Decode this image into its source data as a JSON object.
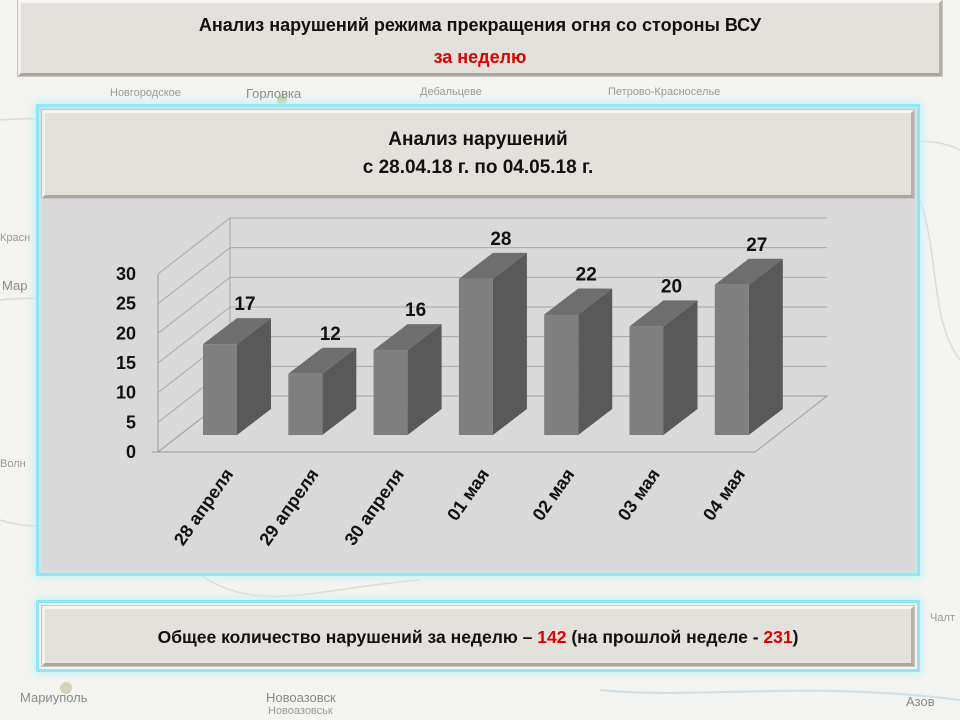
{
  "header": {
    "title": "Анализ нарушений режима прекращения огня со стороны ВСУ",
    "subtitle": "за неделю"
  },
  "chart": {
    "title_line1": "Анализ нарушений",
    "title_line2": "с 28.04.18 г. по 04.05.18 г."
  },
  "chart_data": {
    "type": "bar",
    "categories": [
      "28 апреля",
      "29 апреля",
      "30 апреля",
      "01 мая",
      "02 мая",
      "03 мая",
      "04 мая"
    ],
    "values": [
      17,
      12,
      16,
      28,
      22,
      20,
      27
    ],
    "ylim": [
      0,
      30
    ],
    "yticks": [
      0,
      5,
      10,
      15,
      20,
      25,
      30
    ],
    "grid": true,
    "legend": "none",
    "style": "3d-column"
  },
  "summary": {
    "prefix": "Общее количество нарушений за неделю – ",
    "week_total": "142",
    "middle": " (на прошлой неделе - ",
    "prev_total": "231",
    "suffix": ")"
  },
  "map_labels": [
    "Горловка",
    "Дебальцеве",
    "Новгородское",
    "Петрово-Красноселье",
    "Мариуполь",
    "Новоазовск",
    "Азов",
    "Чалт",
    "Волн",
    "Мар",
    "Красн",
    "Новоазовськ"
  ],
  "colors": {
    "accent_red": "#e00000",
    "frame_glow": "#8fe6f4",
    "bar_front": "#7f7f7f",
    "bar_side": "#595959",
    "bar_top": "#6e6e6e"
  }
}
